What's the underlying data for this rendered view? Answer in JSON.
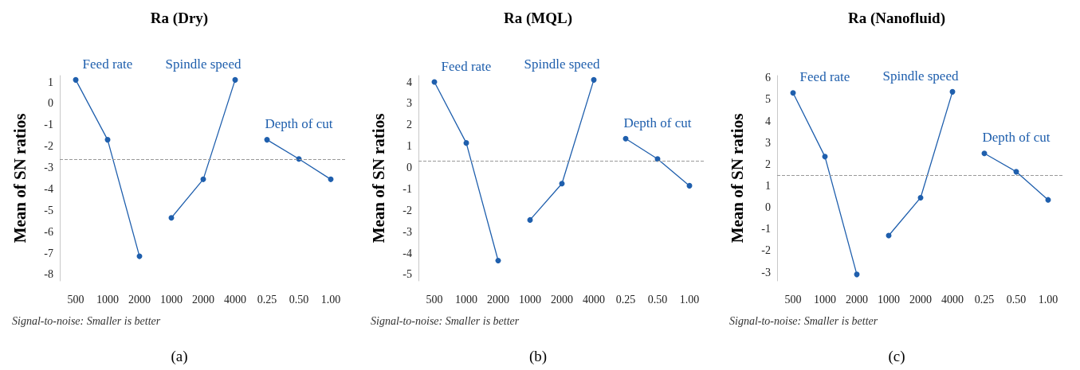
{
  "chart_data": [
    {
      "type": "line",
      "title": "Ra (Dry)",
      "ylabel": "Mean of SN ratios",
      "categories": [
        "500",
        "1000",
        "2000",
        "1000",
        "2000",
        "4000",
        "0.25",
        "0.50",
        "1.00"
      ],
      "series": [
        {
          "name": "Feed rate",
          "color": "#1f5fad",
          "values": [
            1.1,
            -1.7,
            -7.15,
            null,
            null,
            null,
            null,
            null,
            null
          ]
        },
        {
          "name": "Spindle speed",
          "color": "#1f5fad",
          "values": [
            null,
            null,
            null,
            -5.35,
            -3.55,
            1.1,
            null,
            null,
            null
          ]
        },
        {
          "name": "Depth of cut",
          "color": "#1f5fad",
          "values": [
            null,
            null,
            null,
            null,
            null,
            null,
            -1.7,
            -2.6,
            -3.55
          ]
        }
      ],
      "ylim": [
        -8.3,
        1.3
      ],
      "yticks": [
        -8,
        -7,
        -6,
        -5,
        -4,
        -3,
        -2,
        -1,
        0,
        1
      ],
      "ref_lines": [
        {
          "axis": "y",
          "value": -2.6,
          "color": "#999999",
          "line_style": "dashed"
        }
      ],
      "annotations": [
        "Signal-to-noise: Smaller is better",
        "(a)"
      ],
      "grid": false,
      "legend": false,
      "marker": "circle",
      "line_style": "solid"
    },
    {
      "type": "line",
      "title": "Ra (MQL)",
      "ylabel": "Mean of SN ratios",
      "categories": [
        "500",
        "1000",
        "2000",
        "1000",
        "2000",
        "4000",
        "0.25",
        "0.50",
        "1.00"
      ],
      "series": [
        {
          "name": "Feed rate",
          "color": "#1f5fad",
          "values": [
            4.0,
            1.15,
            -4.35,
            null,
            null,
            null,
            null,
            null,
            null
          ]
        },
        {
          "name": "Spindle speed",
          "color": "#1f5fad",
          "values": [
            null,
            null,
            null,
            -2.45,
            -0.75,
            4.1,
            null,
            null,
            null
          ]
        },
        {
          "name": "Depth of cut",
          "color": "#1f5fad",
          "values": [
            null,
            null,
            null,
            null,
            null,
            null,
            1.35,
            0.4,
            -0.85
          ]
        }
      ],
      "ylim": [
        -5.3,
        4.3
      ],
      "yticks": [
        -5,
        -4,
        -3,
        -2,
        -1,
        0,
        1,
        2,
        3,
        4
      ],
      "ref_lines": [
        {
          "axis": "y",
          "value": 0.3,
          "color": "#999999",
          "line_style": "dashed"
        }
      ],
      "annotations": [
        "Signal-to-noise: Smaller is better",
        "(b)"
      ],
      "grid": false,
      "legend": false,
      "marker": "circle",
      "line_style": "solid"
    },
    {
      "type": "line",
      "title": "Ra (Nanofluid)",
      "ylabel": "Mean of SN ratios",
      "categories": [
        "500",
        "1000",
        "2000",
        "1000",
        "2000",
        "4000",
        "0.25",
        "0.50",
        "1.00"
      ],
      "series": [
        {
          "name": "Feed rate",
          "color": "#1f5fad",
          "values": [
            5.3,
            2.35,
            -3.1,
            null,
            null,
            null,
            null,
            null,
            null
          ]
        },
        {
          "name": "Spindle speed",
          "color": "#1f5fad",
          "values": [
            null,
            null,
            null,
            -1.3,
            0.45,
            5.35,
            null,
            null,
            null
          ]
        },
        {
          "name": "Depth of cut",
          "color": "#1f5fad",
          "values": [
            null,
            null,
            null,
            null,
            null,
            null,
            2.5,
            1.65,
            0.35
          ]
        }
      ],
      "ylim": [
        -3.4,
        6.1
      ],
      "yticks": [
        -3,
        -2,
        -1,
        0,
        1,
        2,
        3,
        4,
        5,
        6
      ],
      "ref_lines": [
        {
          "axis": "y",
          "value": 1.5,
          "color": "#999999",
          "line_style": "dashed"
        }
      ],
      "annotations": [
        "Signal-to-noise: Smaller is better",
        "(c)"
      ],
      "grid": false,
      "legend": false,
      "marker": "circle",
      "line_style": "solid"
    }
  ]
}
